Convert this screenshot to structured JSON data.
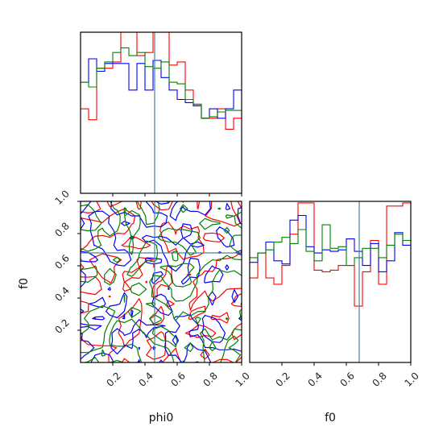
{
  "chart_data": [
    {
      "type": "histogram",
      "panel": "phi0-marginal",
      "x_variable": "phi0",
      "xlim": [
        0,
        1
      ],
      "bins": 20,
      "truth": 0.46,
      "truth_color": "#4a7fa0",
      "series": [
        {
          "color": "#ff0000",
          "values": [
            0.54,
            0.47,
            0.8,
            0.8,
            0.84,
            1.03,
            1.03,
            0.88,
            0.9,
            1.03,
            1.03,
            0.82,
            0.84,
            0.66,
            0.56,
            0.48,
            0.48,
            0.54,
            0.41,
            0.48
          ]
        },
        {
          "color": "#0000ff",
          "values": [
            0.71,
            0.86,
            0.78,
            0.83,
            0.83,
            0.83,
            0.66,
            0.83,
            0.66,
            0.85,
            0.74,
            0.66,
            0.6,
            0.58,
            0.56,
            0.48,
            0.54,
            0.48,
            0.54,
            0.66
          ]
        },
        {
          "color": "#008000",
          "values": [
            0.71,
            0.68,
            0.8,
            0.84,
            0.9,
            0.93,
            0.88,
            0.9,
            0.81,
            0.8,
            0.84,
            0.71,
            0.7,
            0.6,
            0.57,
            0.48,
            0.49,
            0.52,
            0.53,
            0.53
          ]
        }
      ],
      "ylim": [
        0,
        1.03
      ],
      "y_ticks_shown": false,
      "x_tick_labels_shown": false
    },
    {
      "type": "contour",
      "panel": "phi0-f0-2d",
      "xlabel": "phi0",
      "ylabel": "f0",
      "xlim": [
        0,
        1
      ],
      "ylim": [
        0,
        1
      ],
      "x_ticks": [
        0.2,
        0.4,
        0.6,
        0.8,
        1.0
      ],
      "x_tick_labels": [
        "0.2",
        "0.4",
        "0.6",
        "0.8",
        "1.0"
      ],
      "y_ticks": [
        0.2,
        0.4,
        0.6,
        0.8,
        1.0
      ],
      "y_tick_labels": [
        "0.2",
        "0.4",
        "0.6",
        "0.8",
        "1.0"
      ],
      "truth": {
        "x": 0.46,
        "y": 0.68
      },
      "truth_color": "#4a7fa0",
      "series_colors": [
        "#ff0000",
        "#0000ff",
        "#008000"
      ],
      "grid": false
    },
    {
      "type": "histogram",
      "panel": "f0-marginal",
      "xlabel": "f0",
      "xlim": [
        0,
        1
      ],
      "bins": 20,
      "truth": 0.68,
      "truth_color": "#4a7fa0",
      "x_ticks": [
        0.2,
        0.4,
        0.6,
        0.8,
        1.0
      ],
      "x_tick_labels": [
        "0.2",
        "0.4",
        "0.6",
        "0.8",
        "1.0"
      ],
      "series": [
        {
          "color": "#ff0000",
          "values": [
            0.54,
            0.7,
            0.54,
            0.5,
            0.62,
            0.82,
            1.02,
            1.02,
            0.59,
            0.58,
            0.59,
            0.62,
            0.62,
            0.36,
            0.58,
            0.78,
            0.5,
            1.0,
            1.0,
            1.02
          ]
        },
        {
          "color": "#0000ff",
          "values": [
            0.64,
            0.7,
            0.77,
            0.65,
            0.63,
            0.91,
            0.94,
            0.74,
            0.7,
            0.72,
            0.71,
            0.72,
            0.79,
            0.71,
            0.62,
            0.76,
            0.58,
            0.65,
            0.83,
            0.75
          ]
        },
        {
          "color": "#008000",
          "values": [
            0.67,
            0.7,
            0.72,
            0.77,
            0.8,
            0.76,
            0.85,
            0.71,
            0.65,
            0.88,
            0.73,
            0.74,
            0.62,
            0.67,
            0.73,
            0.73,
            0.67,
            0.75,
            0.82,
            0.78
          ]
        }
      ],
      "ylim": [
        0,
        1.03
      ],
      "y_ticks_shown": false
    }
  ]
}
